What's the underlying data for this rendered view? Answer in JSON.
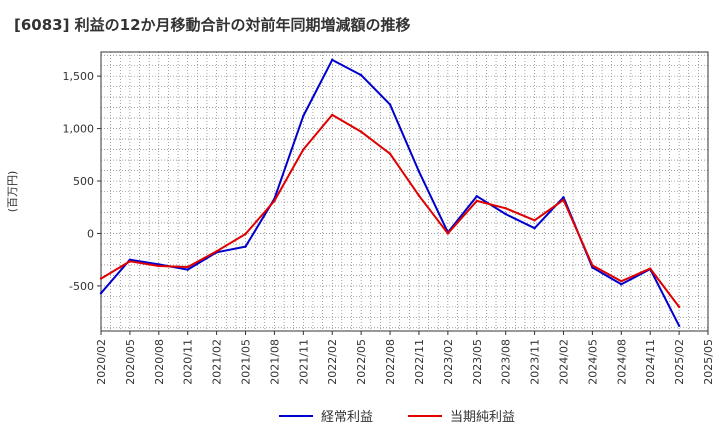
{
  "chart_data": {
    "type": "line",
    "title": "[6083]  利益の12か月移動合計の対前年同期増減額の推移",
    "ylabel": "(百万円)",
    "xlabel": "",
    "ylim": [
      -930,
      1730
    ],
    "yticks": [
      1500,
      1000,
      500,
      0,
      -500
    ],
    "ytick_labels": [
      "1,500",
      "1,000",
      "500",
      "0",
      "-500"
    ],
    "x_tick_labels": [
      "2020/02",
      "2020/05",
      "2020/08",
      "2020/11",
      "2021/02",
      "2021/05",
      "2021/08",
      "2021/11",
      "2022/02",
      "2022/05",
      "2022/08",
      "2022/11",
      "2023/02",
      "2023/05",
      "2023/08",
      "2023/11",
      "2024/02",
      "2024/05",
      "2024/08",
      "2024/11",
      "2025/02",
      "2025/05"
    ],
    "grid": true,
    "legend_position": "bottom",
    "series": [
      {
        "name": "経常利益",
        "color": "#0000cc",
        "values": [
          -570,
          -250,
          -295,
          -345,
          -180,
          -125,
          330,
          1120,
          1655,
          1510,
          1230,
          590,
          10,
          355,
          185,
          50,
          345,
          -325,
          -485,
          -340,
          -880
        ]
      },
      {
        "name": "当期純利益",
        "color": "#e00000",
        "values": [
          -430,
          -265,
          -310,
          -320,
          -170,
          -5,
          310,
          800,
          1130,
          970,
          760,
          360,
          0,
          310,
          240,
          125,
          320,
          -305,
          -455,
          -335,
          -700
        ]
      }
    ]
  }
}
